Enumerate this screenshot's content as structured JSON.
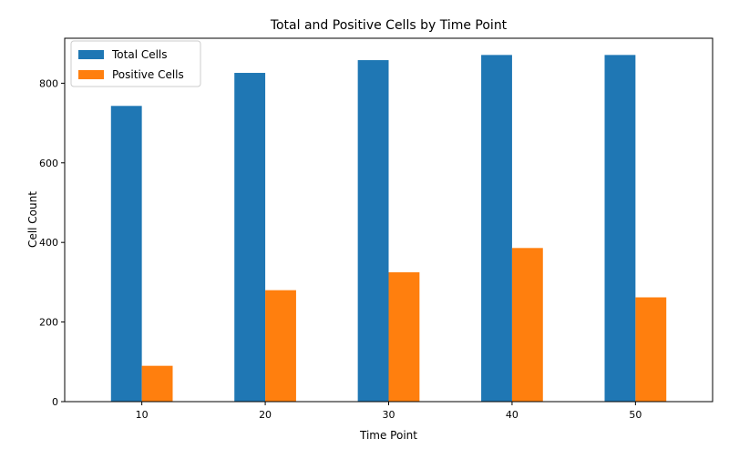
{
  "chart_data": {
    "type": "bar",
    "title": "Total and Positive Cells by Time Point",
    "xlabel": "Time Point",
    "ylabel": "Cell Count",
    "categories": [
      "10",
      "20",
      "30",
      "40",
      "50"
    ],
    "series": [
      {
        "name": "Total Cells",
        "color": "#1f77b4",
        "values": [
          743,
          826,
          858,
          871,
          871
        ]
      },
      {
        "name": "Positive Cells",
        "color": "#ff7f0e",
        "values": [
          90,
          280,
          325,
          386,
          262
        ]
      }
    ],
    "ylim": [
      0,
      913
    ],
    "yticks": [
      0,
      200,
      400,
      600,
      800
    ],
    "grid": false,
    "legend_position": "top-left"
  }
}
